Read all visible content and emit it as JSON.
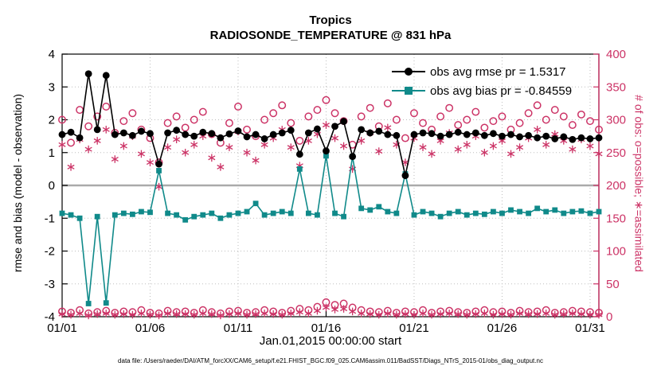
{
  "title": {
    "line1": "Tropics",
    "line2": "RADIOSONDE_TEMPERATURE @ 831 hPa"
  },
  "axes": {
    "left_label": "rmse and bias (model - observation)",
    "right_label": "# of obs: o=possible; ∗=assimilated",
    "x_label": "Jan.01,2015 00:00:00 start",
    "left_ticks": [
      -4,
      -3,
      -2,
      -1,
      0,
      1,
      2,
      3,
      4
    ],
    "right_ticks": [
      0,
      50,
      100,
      150,
      200,
      250,
      300,
      350,
      400
    ],
    "x_tick_days": [
      0,
      5,
      10,
      15,
      20,
      25,
      30
    ],
    "x_tick_labels": [
      "01/01",
      "01/06",
      "01/11",
      "01/16",
      "01/21",
      "01/26",
      "01/31"
    ]
  },
  "legend": [
    {
      "label": "obs avg rmse pr = 1.5317",
      "marker": "filled-circle",
      "color": "#000000"
    },
    {
      "label": "obs avg bias pr = -0.84559",
      "marker": "filled-square",
      "color": "#108a8a"
    }
  ],
  "footer": "data file: /Users/raeder/DAI/ATM_forcXX/CAM6_setup/f.e21.FHIST_BGC.f09_025.CAM6assim.011/BadSST/Diags_NTrS_2015-01/obs_diag_output.nc",
  "colors": {
    "rmse": "#000000",
    "bias": "#108a8a",
    "counts": "#cc3366",
    "grid": "#bdbdbd",
    "zero_line": "#aaaaaa",
    "axis_box": "#000000"
  },
  "chart_data": {
    "type": "line",
    "xlim": [
      0,
      30.5
    ],
    "ylim_left": [
      -4,
      4
    ],
    "ylim_right": [
      0,
      400
    ],
    "grid": true,
    "legend_position": "upper-right-inside",
    "x": [
      0,
      0.5,
      1,
      1.5,
      2,
      2.5,
      3,
      3.5,
      4,
      4.5,
      5,
      5.5,
      6,
      6.5,
      7,
      7.5,
      8,
      8.5,
      9,
      9.5,
      10,
      10.5,
      11,
      11.5,
      12,
      12.5,
      13,
      13.5,
      14,
      14.5,
      15,
      15.5,
      16,
      16.5,
      17,
      17.5,
      18,
      18.5,
      19,
      19.5,
      20,
      20.5,
      21,
      21.5,
      22,
      22.5,
      23,
      23.5,
      24,
      24.5,
      25,
      25.5,
      26,
      26.5,
      27,
      27.5,
      28,
      28.5,
      29,
      29.5,
      30,
      30.5
    ],
    "series": [
      {
        "name": "possible obs count",
        "axis": "right",
        "marker": "open-circle",
        "line": false,
        "color": "#cc3366",
        "values": [
          300,
          265,
          315,
          290,
          305,
          320,
          280,
          298,
          310,
          285,
          272,
          235,
          295,
          305,
          288,
          300,
          312,
          278,
          265,
          295,
          320,
          285,
          275,
          300,
          310,
          322,
          295,
          268,
          305,
          315,
          330,
          310,
          298,
          262,
          305,
          318,
          290,
          325,
          300,
          272,
          310,
          295,
          285,
          305,
          318,
          292,
          300,
          312,
          288,
          298,
          305,
          285,
          295,
          310,
          322,
          300,
          315,
          305,
          292,
          308,
          298,
          285
        ]
      },
      {
        "name": "assimilated obs count",
        "axis": "right",
        "marker": "asterisk",
        "line": false,
        "color": "#cc3366",
        "values": [
          262,
          228,
          270,
          255,
          268,
          285,
          240,
          260,
          275,
          248,
          235,
          198,
          258,
          270,
          250,
          262,
          275,
          242,
          228,
          258,
          282,
          250,
          238,
          262,
          272,
          285,
          258,
          230,
          268,
          278,
          292,
          272,
          260,
          225,
          268,
          280,
          252,
          288,
          262,
          235,
          272,
          258,
          248,
          268,
          280,
          255,
          262,
          275,
          250,
          260,
          268,
          248,
          258,
          272,
          285,
          262,
          278,
          268,
          255,
          270,
          260,
          248
        ]
      },
      {
        "name": "possible obs count (low row)",
        "axis": "right",
        "marker": "open-circle",
        "line": false,
        "color": "#cc3366",
        "values": [
          8,
          6,
          10,
          5,
          7,
          9,
          6,
          8,
          7,
          10,
          6,
          5,
          9,
          7,
          8,
          6,
          10,
          7,
          5,
          8,
          9,
          6,
          7,
          10,
          8,
          6,
          9,
          12,
          10,
          15,
          22,
          18,
          20,
          14,
          10,
          8,
          7,
          9,
          6,
          8,
          7,
          10,
          6,
          8,
          9,
          7,
          6,
          8,
          10,
          7,
          8,
          6,
          9,
          7,
          8,
          10,
          6,
          7,
          9,
          8,
          7,
          6
        ]
      },
      {
        "name": "assimilated obs count (low row)",
        "axis": "right",
        "marker": "asterisk",
        "line": false,
        "color": "#cc3366",
        "values": [
          4,
          3,
          5,
          2,
          4,
          5,
          3,
          4,
          3,
          5,
          3,
          2,
          5,
          4,
          4,
          3,
          5,
          4,
          2,
          4,
          5,
          3,
          4,
          5,
          4,
          3,
          5,
          7,
          5,
          9,
          14,
          11,
          12,
          8,
          5,
          4,
          3,
          5,
          3,
          4,
          3,
          5,
          3,
          4,
          5,
          4,
          3,
          4,
          5,
          3,
          4,
          3,
          5,
          4,
          4,
          5,
          3,
          4,
          5,
          4,
          3,
          3
        ]
      },
      {
        "name": "obs avg bias pr",
        "axis": "left",
        "marker": "filled-square",
        "line": true,
        "color": "#108a8a",
        "values": [
          -0.85,
          -0.9,
          -1.0,
          -3.6,
          -0.95,
          -3.58,
          -0.9,
          -0.85,
          -0.88,
          -0.8,
          -0.82,
          0.45,
          -0.85,
          -0.9,
          -1.05,
          -0.95,
          -0.9,
          -0.85,
          -1.0,
          -0.9,
          -0.85,
          -0.8,
          -0.55,
          -0.9,
          -0.85,
          -0.8,
          -0.85,
          0.5,
          -0.85,
          -0.9,
          0.9,
          -0.85,
          -0.95,
          0.88,
          -0.7,
          -0.75,
          -0.65,
          -0.8,
          -0.85,
          0.35,
          -0.9,
          -0.8,
          -0.85,
          -0.95,
          -0.85,
          -0.8,
          -0.9,
          -0.85,
          -0.88,
          -0.8,
          -0.85,
          -0.75,
          -0.8,
          -0.85,
          -0.7,
          -0.8,
          -0.75,
          -0.85,
          -0.8,
          -0.78,
          -0.85,
          -0.8
        ]
      },
      {
        "name": "obs avg rmse pr",
        "axis": "left",
        "marker": "filled-circle",
        "line": true,
        "color": "#000000",
        "values": [
          1.55,
          1.62,
          1.45,
          3.4,
          1.7,
          3.35,
          1.55,
          1.6,
          1.52,
          1.65,
          1.58,
          0.65,
          1.6,
          1.68,
          1.55,
          1.5,
          1.62,
          1.58,
          1.45,
          1.57,
          1.66,
          1.48,
          1.55,
          1.42,
          1.55,
          1.6,
          1.68,
          0.95,
          1.6,
          1.72,
          1.05,
          1.8,
          1.95,
          0.88,
          1.7,
          1.6,
          1.65,
          1.55,
          1.52,
          0.3,
          1.55,
          1.6,
          1.58,
          1.5,
          1.55,
          1.62,
          1.55,
          1.6,
          1.52,
          1.58,
          1.5,
          1.55,
          1.48,
          1.52,
          1.45,
          1.5,
          1.42,
          1.48,
          1.4,
          1.45,
          1.42,
          1.45
        ]
      }
    ],
    "stats": {
      "obs_avg_rmse_pr": 1.5317,
      "obs_avg_bias_pr": -0.84559
    }
  }
}
